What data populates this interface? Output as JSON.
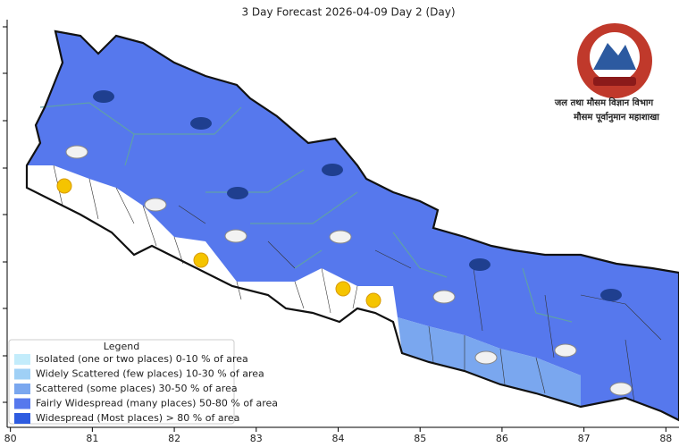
{
  "title": "3 Day Forecast 2026-04-09 Day 2 (Day)",
  "x_axis": {
    "range": [
      79.96,
      88.16
    ],
    "ticks": [
      80,
      81,
      82,
      83,
      84,
      85,
      86,
      87,
      88
    ]
  },
  "agency": {
    "department": "जल तथा मौसम विज्ञान विभाग",
    "division": "मौसम पूर्वानुमान महाशाखा"
  },
  "legend": {
    "title": "Legend",
    "items": [
      {
        "label": "Isolated (one or two places)  0-10 % of area",
        "color": "#c3ecfb"
      },
      {
        "label": "Widely Scattered (few places)  10-30 % of area",
        "color": "#9fd0f6"
      },
      {
        "label": "Scattered (some places)  30-50 % of area",
        "color": "#7aa7ef"
      },
      {
        "label": "Fairly Widespread (many places)  50-80 % of area",
        "color": "#5678ed"
      },
      {
        "label": "Widespread (Most places) > 80 % of area",
        "color": "#2e5ce0"
      }
    ]
  }
}
